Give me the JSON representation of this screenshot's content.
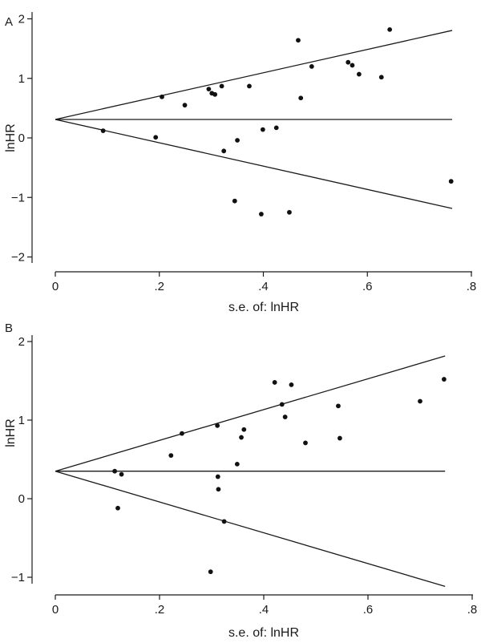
{
  "chart_data": [
    {
      "panel_label": "A",
      "type": "scatter",
      "xlabel": "s.e. of: lnHR",
      "ylabel": "lnHR",
      "xlim": [
        0,
        0.8
      ],
      "ylim": [
        -2,
        2
      ],
      "x_ticks": [
        "0",
        ".2",
        ".4",
        ".6",
        ".8"
      ],
      "y_ticks": [
        "−2",
        "−1",
        "0",
        "1",
        "2"
      ],
      "pooled_estimate": 0.31,
      "funnel_max_se": 0.763,
      "points": [
        {
          "x": 0.092,
          "y": 0.12
        },
        {
          "x": 0.193,
          "y": 0.01
        },
        {
          "x": 0.205,
          "y": 0.69
        },
        {
          "x": 0.249,
          "y": 0.55
        },
        {
          "x": 0.295,
          "y": 0.82
        },
        {
          "x": 0.301,
          "y": 0.75
        },
        {
          "x": 0.307,
          "y": 0.73
        },
        {
          "x": 0.32,
          "y": 0.87
        },
        {
          "x": 0.324,
          "y": -0.22
        },
        {
          "x": 0.345,
          "y": -1.06
        },
        {
          "x": 0.35,
          "y": -0.04
        },
        {
          "x": 0.373,
          "y": 0.87
        },
        {
          "x": 0.396,
          "y": -1.28
        },
        {
          "x": 0.399,
          "y": 0.14
        },
        {
          "x": 0.425,
          "y": 0.17
        },
        {
          "x": 0.45,
          "y": -1.25
        },
        {
          "x": 0.467,
          "y": 1.64
        },
        {
          "x": 0.472,
          "y": 0.67
        },
        {
          "x": 0.493,
          "y": 1.2
        },
        {
          "x": 0.563,
          "y": 1.27
        },
        {
          "x": 0.571,
          "y": 1.22
        },
        {
          "x": 0.584,
          "y": 1.07
        },
        {
          "x": 0.627,
          "y": 1.02
        },
        {
          "x": 0.643,
          "y": 1.82
        },
        {
          "x": 0.761,
          "y": -0.73
        }
      ]
    },
    {
      "panel_label": "B",
      "type": "scatter",
      "xlabel": "s.e. of: lnHR",
      "ylabel": "lnHR",
      "xlim": [
        0,
        0.8
      ],
      "ylim": [
        -1,
        2
      ],
      "x_ticks": [
        "0",
        ".2",
        ".4",
        ".6",
        ".8"
      ],
      "y_ticks": [
        "−1",
        "0",
        "1",
        "2"
      ],
      "pooled_estimate": 0.35,
      "funnel_max_se": 0.748,
      "points": [
        {
          "x": 0.114,
          "y": 0.35
        },
        {
          "x": 0.12,
          "y": -0.12
        },
        {
          "x": 0.127,
          "y": 0.31
        },
        {
          "x": 0.222,
          "y": 0.55
        },
        {
          "x": 0.243,
          "y": 0.83
        },
        {
          "x": 0.298,
          "y": -0.93
        },
        {
          "x": 0.311,
          "y": 0.93
        },
        {
          "x": 0.312,
          "y": 0.28
        },
        {
          "x": 0.313,
          "y": 0.12
        },
        {
          "x": 0.324,
          "y": -0.29
        },
        {
          "x": 0.349,
          "y": 0.44
        },
        {
          "x": 0.357,
          "y": 0.78
        },
        {
          "x": 0.362,
          "y": 0.88
        },
        {
          "x": 0.421,
          "y": 1.48
        },
        {
          "x": 0.435,
          "y": 1.2
        },
        {
          "x": 0.441,
          "y": 1.04
        },
        {
          "x": 0.453,
          "y": 1.45
        },
        {
          "x": 0.48,
          "y": 0.71
        },
        {
          "x": 0.543,
          "y": 1.18
        },
        {
          "x": 0.546,
          "y": 0.77
        },
        {
          "x": 0.7,
          "y": 1.24
        },
        {
          "x": 0.746,
          "y": 1.52
        }
      ]
    }
  ]
}
